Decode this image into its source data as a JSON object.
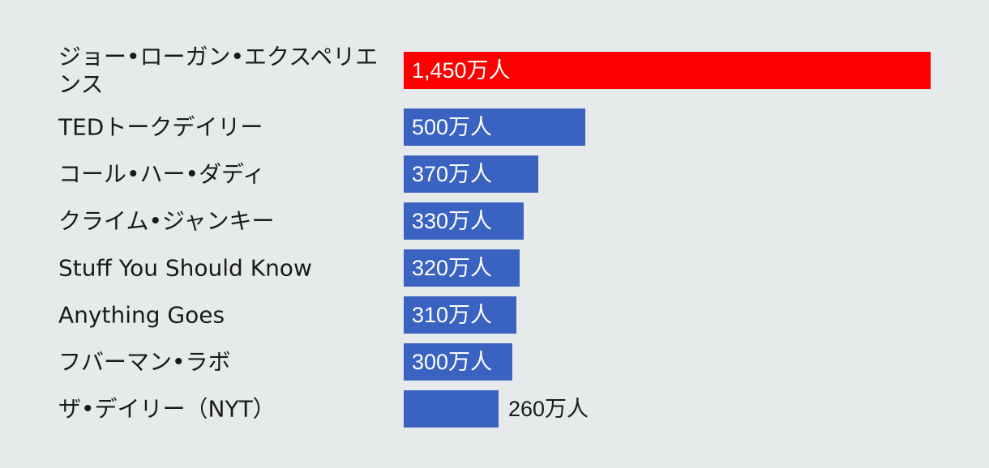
{
  "chart_data": {
    "type": "bar",
    "orientation": "horizontal",
    "categories": [
      "ジョー•ローガン•エクスペリエンス",
      "TEDトークデイリー",
      "コール•ハー•ダディ",
      "クライム•ジャンキー",
      "Stuff You Should Know",
      "Anything Goes",
      "フバーマン•ラボ",
      "ザ•デイリー（NYT）"
    ],
    "values": [
      1450,
      500,
      370,
      330,
      320,
      310,
      300,
      260
    ],
    "value_labels": [
      "1,450万人",
      "500万人",
      "370万人",
      "330万人",
      "320万人",
      "310万人",
      "300万人",
      "260万人"
    ],
    "unit": "万人",
    "highlight_index": 0,
    "colors": {
      "highlight": "#ff0000",
      "bar": "#3a63c1",
      "background": "#e6eaeb",
      "label_text": "#1a1a1a"
    },
    "title": "",
    "xlabel": "",
    "ylabel": "",
    "grid": false,
    "legend": "none"
  }
}
